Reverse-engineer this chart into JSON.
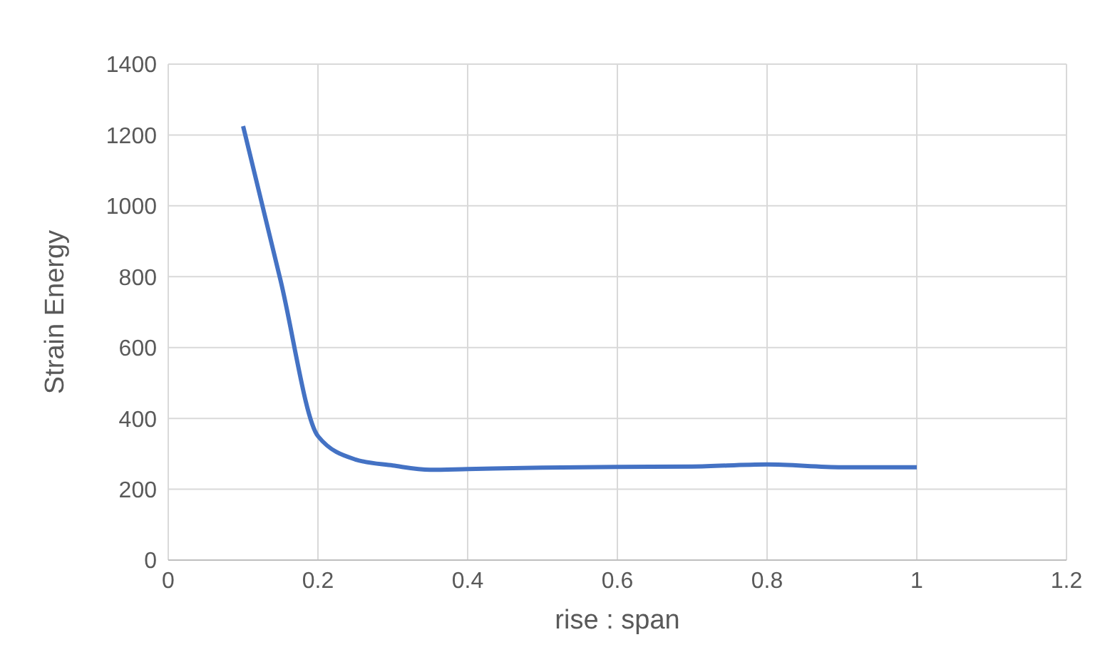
{
  "chart_data": {
    "type": "line",
    "xlabel": "rise : span",
    "ylabel": "Strain Energy",
    "x": [
      0.1,
      0.15,
      0.2,
      0.25,
      0.3,
      0.35,
      0.4,
      0.5,
      0.6,
      0.7,
      0.8,
      0.9,
      1.0
    ],
    "series": [
      {
        "color": "#4472c4",
        "values": [
          1225,
          790,
          350,
          284,
          267,
          255,
          257,
          261,
          263,
          264,
          270,
          262,
          262
        ]
      }
    ],
    "xlim": [
      0,
      1.2
    ],
    "xticks": [
      0,
      0.2,
      0.4,
      0.6,
      0.8,
      1,
      1.2
    ],
    "ylim": [
      0,
      1400
    ],
    "yticks": [
      0,
      200,
      400,
      600,
      800,
      1000,
      1200,
      1400
    ],
    "grid": true,
    "marker": "none",
    "line_style": "solid",
    "legend": false
  }
}
